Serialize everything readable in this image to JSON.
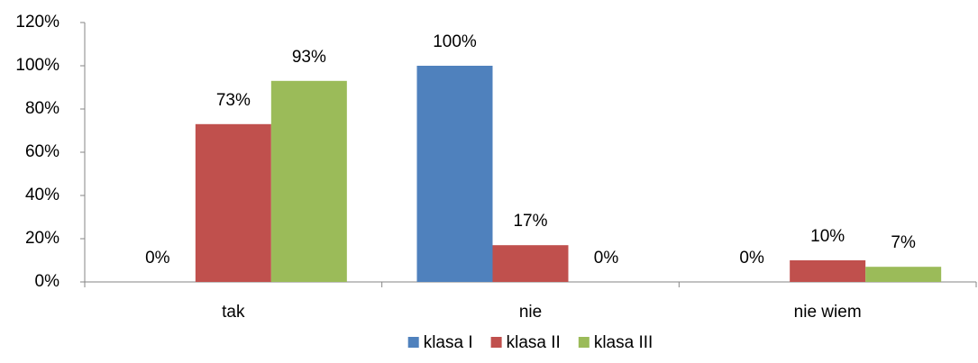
{
  "chart_data": {
    "type": "bar",
    "categories": [
      "tak",
      "nie",
      "nie wiem"
    ],
    "series": [
      {
        "name": "klasa I",
        "color": "#4f81bd",
        "values": [
          0,
          100,
          0
        ],
        "value_labels": [
          "0%",
          "100%",
          "0%"
        ]
      },
      {
        "name": "klasa II",
        "color": "#c0504d",
        "values": [
          73,
          17,
          10
        ],
        "value_labels": [
          "73%",
          "17%",
          "10%"
        ]
      },
      {
        "name": "klasa III",
        "color": "#9bbb59",
        "values": [
          93,
          0,
          7
        ],
        "value_labels": [
          "93%",
          "0%",
          "7%"
        ]
      }
    ],
    "ylim": [
      0,
      120
    ],
    "yticks": [
      {
        "value": 0,
        "label": "0%"
      },
      {
        "value": 20,
        "label": "20%"
      },
      {
        "value": 40,
        "label": "40%"
      },
      {
        "value": 60,
        "label": "60%"
      },
      {
        "value": 80,
        "label": "80%"
      },
      {
        "value": 100,
        "label": "100%"
      },
      {
        "value": 120,
        "label": "120%"
      }
    ],
    "grid": false,
    "legend": "bottom"
  }
}
